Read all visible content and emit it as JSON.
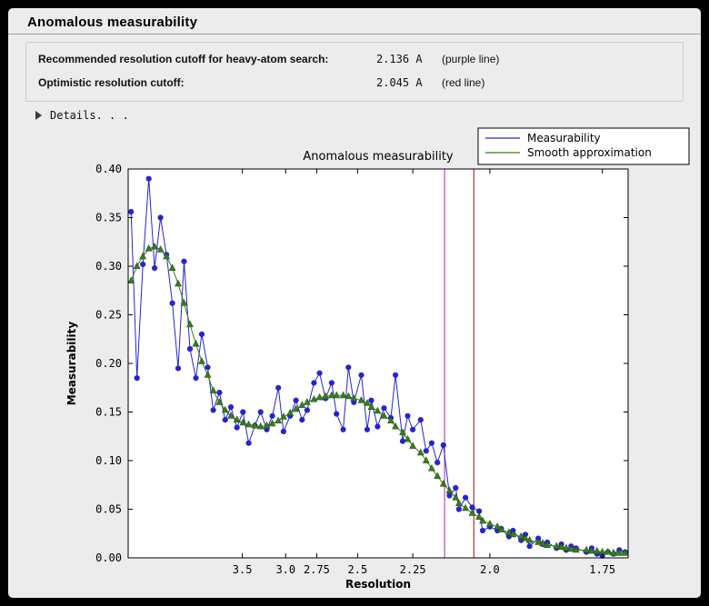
{
  "panel": {
    "title": "Anomalous measurability"
  },
  "info": {
    "rows": [
      {
        "label": "Recommended resolution cutoff for heavy-atom search:",
        "value": "2.136 A",
        "note": "(purple line)"
      },
      {
        "label": "Optimistic resolution cutoff:",
        "value": "2.045 A",
        "note": "(red line)"
      }
    ]
  },
  "details": {
    "label": "Details. . ."
  },
  "chart_data": {
    "type": "line",
    "title": "Anomalous measurability",
    "xlabel": "Resolution",
    "ylabel": "Measurability",
    "legend": {
      "position": "top-right"
    },
    "x_axis": {
      "scale": "1/d^2",
      "tick_labels": [
        "3.5",
        "3.0",
        "2.75",
        "2.5",
        "2.25",
        "2.0",
        "1.75"
      ],
      "range_s": [
        0.004,
        0.344
      ]
    },
    "y_axis": {
      "ticks": [
        0.0,
        0.05,
        0.1,
        0.15,
        0.2,
        0.25,
        0.3,
        0.35,
        0.4
      ],
      "range": [
        0.0,
        0.4
      ]
    },
    "x_resolution": [
      12.91,
      10.0,
      8.45,
      7.45,
      6.74,
      6.2,
      5.77,
      5.42,
      5.13,
      4.88,
      4.66,
      4.47,
      4.3,
      4.15,
      4.02,
      3.89,
      3.78,
      3.68,
      3.58,
      3.49,
      3.41,
      3.33,
      3.26,
      3.19,
      3.13,
      3.07,
      3.02,
      2.96,
      2.91,
      2.86,
      2.82,
      2.77,
      2.73,
      2.69,
      2.65,
      2.62,
      2.58,
      2.55,
      2.52,
      2.48,
      2.45,
      2.43,
      2.4,
      2.37,
      2.34,
      2.32,
      2.29,
      2.27,
      2.25,
      2.22,
      2.2,
      2.18,
      2.16,
      2.14,
      2.12,
      2.1,
      2.09,
      2.07,
      2.05,
      2.03,
      2.02,
      2.0,
      1.98,
      1.97,
      1.95,
      1.94,
      1.92,
      1.91,
      1.9,
      1.88,
      1.87,
      1.86,
      1.84,
      1.83,
      1.82,
      1.81,
      1.8,
      1.78,
      1.77,
      1.76,
      1.75,
      1.74,
      1.73,
      1.72,
      1.71
    ],
    "series": [
      {
        "name": "Measurability",
        "color": "#2525cc",
        "marker": "circle",
        "values": [
          0.356,
          0.185,
          0.302,
          0.39,
          0.298,
          0.35,
          0.312,
          0.262,
          0.195,
          0.305,
          0.215,
          0.185,
          0.23,
          0.196,
          0.152,
          0.17,
          0.142,
          0.155,
          0.134,
          0.15,
          0.118,
          0.136,
          0.15,
          0.132,
          0.146,
          0.175,
          0.13,
          0.146,
          0.162,
          0.142,
          0.152,
          0.18,
          0.19,
          0.164,
          0.18,
          0.148,
          0.132,
          0.196,
          0.16,
          0.188,
          0.132,
          0.162,
          0.135,
          0.154,
          0.144,
          0.188,
          0.12,
          0.146,
          0.132,
          0.142,
          0.11,
          0.118,
          0.098,
          0.116,
          0.064,
          0.072,
          0.05,
          0.062,
          0.052,
          0.048,
          0.028,
          0.032,
          0.028,
          0.03,
          0.022,
          0.028,
          0.018,
          0.024,
          0.012,
          0.02,
          0.014,
          0.016,
          0.01,
          0.014,
          0.008,
          0.012,
          0.01,
          0.006,
          0.01,
          0.004,
          0.002,
          0.006,
          0.004,
          0.008,
          0.006
        ]
      },
      {
        "name": "Smooth approximation",
        "color": "#3b7d1e",
        "marker": "triangle",
        "marker_edge": "#245410",
        "values": [
          0.285,
          0.3,
          0.31,
          0.318,
          0.32,
          0.317,
          0.31,
          0.298,
          0.282,
          0.262,
          0.24,
          0.22,
          0.202,
          0.188,
          0.172,
          0.16,
          0.152,
          0.146,
          0.142,
          0.139,
          0.137,
          0.136,
          0.135,
          0.136,
          0.138,
          0.141,
          0.145,
          0.149,
          0.153,
          0.157,
          0.16,
          0.163,
          0.165,
          0.166,
          0.167,
          0.167,
          0.167,
          0.166,
          0.164,
          0.162,
          0.159,
          0.155,
          0.151,
          0.146,
          0.141,
          0.135,
          0.129,
          0.122,
          0.115,
          0.108,
          0.1,
          0.092,
          0.084,
          0.076,
          0.069,
          0.062,
          0.056,
          0.051,
          0.046,
          0.042,
          0.038,
          0.035,
          0.032,
          0.029,
          0.026,
          0.024,
          0.022,
          0.02,
          0.018,
          0.016,
          0.015,
          0.013,
          0.012,
          0.011,
          0.01,
          0.009,
          0.008,
          0.008,
          0.007,
          0.007,
          0.006,
          0.006,
          0.005,
          0.005,
          0.005
        ]
      }
    ],
    "vlines": [
      {
        "name": "purple-line",
        "label": "Recommended cutoff",
        "resolution": 2.136,
        "color": "#b44cb4"
      },
      {
        "name": "red-line",
        "label": "Optimistic cutoff",
        "resolution": 2.045,
        "color": "#a03a30"
      }
    ]
  }
}
